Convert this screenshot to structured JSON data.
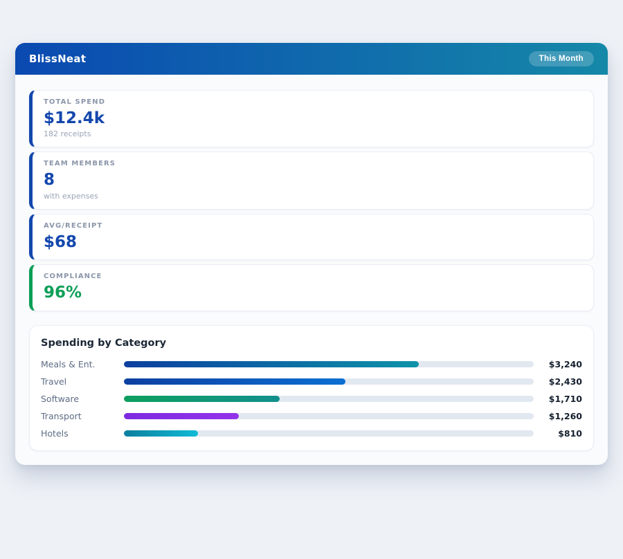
{
  "page": {
    "background_color": "#eef1f6"
  },
  "header": {
    "title": "BlissNeat",
    "badge_label": "This Month",
    "gradient_start": "#0a49b1",
    "gradient_end": "#1588a8"
  },
  "stats": {
    "cards": [
      {
        "label": "TOTAL SPEND",
        "value": "$12.4k",
        "sub": "182 receipts",
        "accent_color": "#1347ad",
        "value_color": "#1347ad"
      },
      {
        "label": "TEAM MEMBERS",
        "value": "8",
        "sub": "with expenses",
        "accent_color": "#1347ad",
        "value_color": "#1347ad"
      },
      {
        "label": "AVG/RECEIPT",
        "value": "$68",
        "sub": "",
        "accent_color": "#1347ad",
        "value_color": "#1347ad"
      },
      {
        "label": "COMPLIANCE",
        "value": "96%",
        "sub": "",
        "accent_color": "#0d9e57",
        "value_color": "#0d9e57"
      }
    ]
  },
  "chart_data": {
    "type": "bar",
    "orientation": "horizontal",
    "title": "Spending by Category",
    "categories": [
      "Meals & Ent.",
      "Travel",
      "Software",
      "Transport",
      "Hotels"
    ],
    "values": [
      3240,
      2430,
      1710,
      1260,
      810
    ],
    "xlim": [
      0,
      4500
    ],
    "track_color": "#e2e8f0",
    "rows": [
      {
        "label": "Meals & Ent.",
        "value_label": "$3,240",
        "percent": 72,
        "color_start": "#0c3fa0",
        "color_end": "#0e93a8"
      },
      {
        "label": "Travel",
        "value_label": "$2,430",
        "percent": 54,
        "color_start": "#0c3fa0",
        "color_end": "#0b6fd2"
      },
      {
        "label": "Software",
        "value_label": "$1,710",
        "percent": 38,
        "color_start": "#0d9f5e",
        "color_end": "#12908d"
      },
      {
        "label": "Transport",
        "value_label": "$1,260",
        "percent": 28,
        "color_start": "#7d2ae0",
        "color_end": "#9333ea"
      },
      {
        "label": "Hotels",
        "value_label": "$810",
        "percent": 18,
        "color_start": "#0c7f9d",
        "color_end": "#10bad6"
      }
    ]
  }
}
